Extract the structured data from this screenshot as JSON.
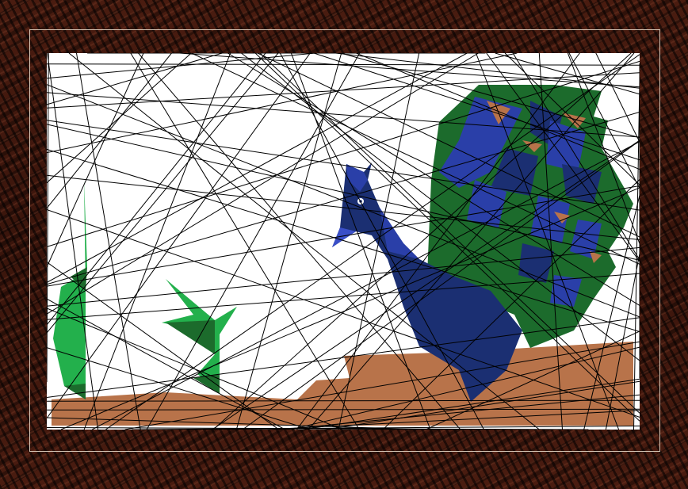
{
  "artwork": {
    "subject": "peacock-mosaic",
    "colors": {
      "frame_wood": "#3a150c",
      "mat": "#ffffff",
      "ground": "#b8734a",
      "peacock_navy": "#1b2f72",
      "peacock_blue": "#2a3fa8",
      "tail_green": "#1c6b2c",
      "plant_green": "#23b04c",
      "line": "#000000"
    }
  }
}
